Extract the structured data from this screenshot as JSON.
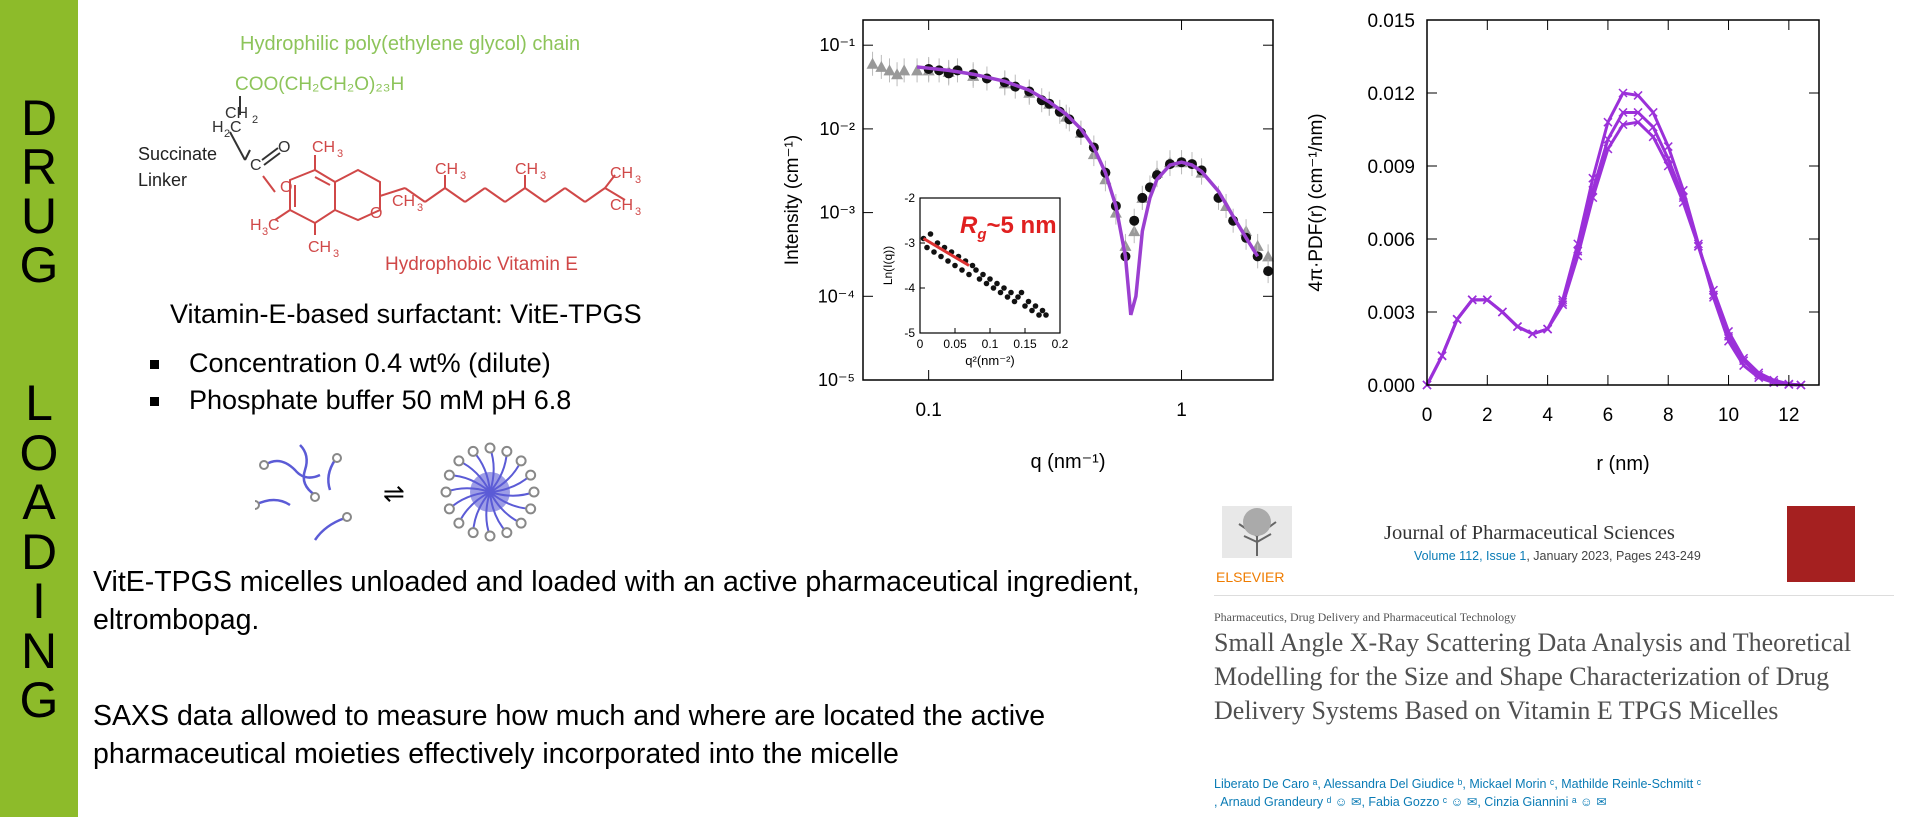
{
  "sidebar": {
    "letters_top": [
      "D",
      "R",
      "U",
      "G"
    ],
    "letters_bottom": [
      "L",
      "O",
      "A",
      "D",
      "I",
      "N",
      "G"
    ],
    "color": "#8dbb2a"
  },
  "molecule": {
    "hydrophilic_label": "Hydrophilic poly(ethylene glycol) chain",
    "peg_formula": "COO(CH₂CH₂O)₂₃H",
    "linker_label": "Succinate",
    "linker_label2": "Linker",
    "hydrophobic_label": "Hydrophobic Vitamin E",
    "surfactant_title": "Vitamin-E-based surfactant: VitE-TPGS",
    "bullets": [
      "Concentration 0.4 wt% (dilute)",
      "Phosphate buffer 50 mM pH 6.8"
    ],
    "green": "#8dc45a",
    "red": "#d04848"
  },
  "text": {
    "paragraph1": "VitE-TPGS micelles unloaded and loaded with an active pharmaceutical ingredient, eltrombopag.",
    "paragraph2": "SAXS data allowed to measure how much and where are located the active pharmaceutical moieties effectively incorporated into the micelle"
  },
  "reference": {
    "publisher": "ELSEVIER",
    "journal": "Journal of Pharmaceutical Sciences",
    "volume_link": "Volume 112, Issue 1",
    "volume_rest": ", January 2023, Pages 243-249",
    "section": "Pharmaceutics, Drug Delivery and Pharmaceutical Technology",
    "title": "Small Angle X-Ray Scattering Data Analysis and Theoretical Modelling for the Size and Shape Characterization of Drug Delivery Systems Based on Vitamin E TPGS Micelles",
    "authors_line1": "Liberato De Caro ᵃ, Alessandra Del Giudice ᵇ, Mickael Morin ᶜ, Mathilde Reinle-Schmitt ᶜ",
    "authors_line2": ", Arnaud Grandeury ᵈ ☺ ✉, Fabia Gozzo ᶜ ☺ ✉, Cinzia Giannini ᵃ ☺ ✉"
  },
  "chart_data": [
    {
      "type": "scatter",
      "xlabel": "q (nm⁻¹)",
      "ylabel": "Intensity (cm⁻¹)",
      "xscale": "log",
      "yscale": "log",
      "xlim": [
        0.055,
        2.3
      ],
      "ylim": [
        1e-05,
        0.2
      ],
      "xticks": [
        {
          "v": 0.1,
          "label": "0.1"
        },
        {
          "v": 1,
          "label": "1"
        }
      ],
      "yticks": [
        {
          "v": 0.1,
          "label": "10⁻¹"
        },
        {
          "v": 0.01,
          "label": "10⁻²"
        },
        {
          "v": 0.001,
          "label": "10⁻³"
        },
        {
          "v": 0.0001,
          "label": "10⁻⁴"
        },
        {
          "v": 1e-05,
          "label": "10⁻⁵"
        }
      ],
      "series": [
        {
          "marker": "triangle",
          "color": "#999999",
          "x": [
            0.06,
            0.065,
            0.07,
            0.075,
            0.08,
            0.09,
            0.1,
            0.12,
            0.15,
            0.2,
            0.25,
            0.3,
            0.35,
            0.4,
            0.45,
            0.5,
            0.55,
            0.6,
            0.65,
            0.7,
            0.8,
            0.9,
            1.0,
            1.2,
            1.5,
            1.8,
            2.0,
            2.2
          ],
          "y": [
            0.06,
            0.055,
            0.05,
            0.045,
            0.05,
            0.05,
            0.05,
            0.048,
            0.043,
            0.035,
            0.027,
            0.02,
            0.014,
            0.009,
            0.005,
            0.0025,
            0.001,
            0.0004,
            0.0006,
            0.0015,
            0.003,
            0.004,
            0.004,
            0.003,
            0.0012,
            0.0006,
            0.0004,
            0.0003
          ]
        },
        {
          "marker": "circle",
          "color": "#111111",
          "x": [
            0.1,
            0.11,
            0.12,
            0.13,
            0.15,
            0.17,
            0.2,
            0.22,
            0.25,
            0.28,
            0.3,
            0.33,
            0.36,
            0.4,
            0.45,
            0.5,
            0.55,
            0.6,
            0.65,
            0.7,
            0.75,
            0.8,
            0.9,
            1.0,
            1.1,
            1.2,
            1.4,
            1.6,
            1.8,
            2.0,
            2.2
          ],
          "y": [
            0.052,
            0.05,
            0.046,
            0.05,
            0.045,
            0.04,
            0.036,
            0.032,
            0.028,
            0.022,
            0.02,
            0.016,
            0.013,
            0.009,
            0.006,
            0.003,
            0.0012,
            0.0003,
            0.0008,
            0.0015,
            0.002,
            0.0028,
            0.0038,
            0.004,
            0.0038,
            0.0032,
            0.0015,
            0.0008,
            0.0005,
            0.0003,
            0.0002
          ]
        },
        {
          "marker": "line",
          "color": "#9b3fd0",
          "name": "fit",
          "x": [
            0.09,
            0.12,
            0.15,
            0.2,
            0.25,
            0.3,
            0.35,
            0.4,
            0.45,
            0.5,
            0.55,
            0.6,
            0.63,
            0.66,
            0.7,
            0.75,
            0.8,
            0.9,
            1.0,
            1.1,
            1.2,
            1.4,
            1.6,
            1.8,
            2.0
          ],
          "y": [
            0.055,
            0.05,
            0.045,
            0.037,
            0.029,
            0.021,
            0.015,
            0.01,
            0.006,
            0.003,
            0.0012,
            0.0003,
            6e-05,
            0.0001,
            0.0006,
            0.0015,
            0.0025,
            0.0037,
            0.004,
            0.0037,
            0.0031,
            0.0018,
            0.0009,
            0.0005,
            0.0003
          ]
        }
      ],
      "inset": {
        "xlabel": "q²(nm⁻²)",
        "ylabel": "Ln(I(q))",
        "xlim": [
          0,
          0.2
        ],
        "ylim": [
          -5,
          -2
        ],
        "xticks": [
          {
            "v": 0,
            "label": "0"
          },
          {
            "v": 0.05,
            "label": "0.05"
          },
          {
            "v": 0.1,
            "label": "0.1"
          },
          {
            "v": 0.15,
            "label": "0.15"
          },
          {
            "v": 0.2,
            "label": "0.2"
          }
        ],
        "yticks": [
          {
            "v": -2,
            "label": "-2"
          },
          {
            "v": -3,
            "label": "-3"
          },
          {
            "v": -4,
            "label": "-4"
          },
          {
            "v": -5,
            "label": "-5"
          }
        ],
        "annotation": "R",
        "annotation_sub": "g",
        "annotation_rest": "~5 nm",
        "points_x": [
          0.005,
          0.01,
          0.015,
          0.02,
          0.025,
          0.03,
          0.035,
          0.04,
          0.045,
          0.05,
          0.055,
          0.06,
          0.065,
          0.07,
          0.075,
          0.08,
          0.085,
          0.09,
          0.095,
          0.1,
          0.105,
          0.11,
          0.115,
          0.12,
          0.125,
          0.13,
          0.135,
          0.14,
          0.145,
          0.15,
          0.155,
          0.16,
          0.165,
          0.17,
          0.175,
          0.18
        ],
        "points_y": [
          -2.9,
          -3.1,
          -2.8,
          -3.2,
          -3.0,
          -3.3,
          -3.1,
          -3.4,
          -3.2,
          -3.5,
          -3.3,
          -3.6,
          -3.4,
          -3.7,
          -3.5,
          -3.6,
          -3.8,
          -3.7,
          -3.9,
          -3.8,
          -4.0,
          -3.9,
          -4.1,
          -4.0,
          -4.2,
          -4.1,
          -4.3,
          -4.2,
          -4.1,
          -4.4,
          -4.3,
          -4.5,
          -4.4,
          -4.6,
          -4.5,
          -4.6
        ],
        "fit_x": [
          0.005,
          0.07
        ],
        "fit_y": [
          -2.9,
          -3.5
        ]
      }
    },
    {
      "type": "line",
      "xlabel": "r (nm)",
      "ylabel": "4π·PDF(r) (cm⁻¹/nm)",
      "xlim": [
        0,
        13
      ],
      "ylim": [
        0,
        0.015
      ],
      "xticks": [
        {
          "v": 0,
          "label": "0"
        },
        {
          "v": 2,
          "label": "2"
        },
        {
          "v": 4,
          "label": "4"
        },
        {
          "v": 6,
          "label": "6"
        },
        {
          "v": 8,
          "label": "8"
        },
        {
          "v": 10,
          "label": "10"
        },
        {
          "v": 12,
          "label": "12"
        }
      ],
      "yticks": [
        {
          "v": 0,
          "label": "0.000"
        },
        {
          "v": 0.003,
          "label": "0.003"
        },
        {
          "v": 0.006,
          "label": "0.006"
        },
        {
          "v": 0.009,
          "label": "0.009"
        },
        {
          "v": 0.012,
          "label": "0.012"
        },
        {
          "v": 0.015,
          "label": "0.015"
        }
      ],
      "color": "#9b30d9",
      "series": [
        {
          "x": [
            0,
            0.5,
            1,
            1.5,
            2,
            2.5,
            3,
            3.5,
            4,
            4.5,
            5,
            5.5,
            6,
            6.5,
            7,
            7.5,
            8,
            8.5,
            9,
            9.5,
            10,
            10.5,
            11,
            11.5,
            12,
            12.4
          ],
          "y": [
            0,
            0.0012,
            0.0027,
            0.0035,
            0.0035,
            0.003,
            0.0024,
            0.0021,
            0.0023,
            0.0035,
            0.0058,
            0.0085,
            0.0108,
            0.012,
            0.0119,
            0.0112,
            0.0098,
            0.008,
            0.0058,
            0.0036,
            0.0018,
            0.0008,
            0.0003,
            0.0001,
            2e-05,
            0
          ]
        },
        {
          "x": [
            0,
            0.5,
            1,
            1.5,
            2,
            2.5,
            3,
            3.5,
            4,
            4.5,
            5,
            5.5,
            6,
            6.5,
            7,
            7.5,
            8,
            8.5,
            9,
            9.5,
            10,
            10.5,
            11,
            11.5,
            12,
            12.4
          ],
          "y": [
            0,
            0.0012,
            0.0027,
            0.0035,
            0.0035,
            0.003,
            0.0024,
            0.0021,
            0.0023,
            0.0034,
            0.0055,
            0.008,
            0.0101,
            0.0112,
            0.0112,
            0.0106,
            0.0093,
            0.0077,
            0.0057,
            0.0037,
            0.002,
            0.001,
            0.0004,
            0.0001,
            2e-05,
            0
          ]
        },
        {
          "x": [
            0,
            0.5,
            1,
            1.5,
            2,
            2.5,
            3,
            3.5,
            4,
            4.5,
            5,
            5.5,
            6,
            6.5,
            7,
            7.5,
            8,
            8.5,
            9,
            9.5,
            10,
            10.5,
            11,
            11.5,
            12,
            12.4
          ],
          "y": [
            0,
            0.0012,
            0.0027,
            0.0035,
            0.0035,
            0.003,
            0.0024,
            0.0021,
            0.0023,
            0.0033,
            0.0053,
            0.0077,
            0.0097,
            0.0107,
            0.0108,
            0.0102,
            0.009,
            0.0075,
            0.0057,
            0.0039,
            0.0022,
            0.0011,
            0.0005,
            0.0002,
            4e-05,
            0
          ]
        }
      ]
    }
  ]
}
